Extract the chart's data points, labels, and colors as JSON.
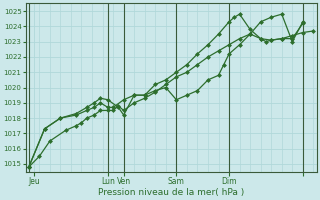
{
  "xlabel": "Pression niveau de la mer( hPa )",
  "bg_color": "#cce8ea",
  "grid_color": "#b0d8da",
  "line_color": "#2d6e2d",
  "ylim": [
    1014.5,
    1025.5
  ],
  "yticks": [
    1015,
    1016,
    1017,
    1018,
    1019,
    1020,
    1021,
    1022,
    1023,
    1024,
    1025
  ],
  "xlim": [
    -0.3,
    27.3
  ],
  "vline_positions": [
    0,
    7.5,
    9,
    14,
    19,
    26
  ],
  "xtick_positions": [
    0.5,
    7.5,
    9.0,
    14.0,
    19.0,
    26.0
  ],
  "xtick_labels": [
    "Jeu",
    "Lun",
    "Ven",
    "Sam",
    "Dim",
    ""
  ],
  "line1_x": [
    0,
    1.0,
    2.0,
    3.5,
    4.5,
    5.0,
    5.5,
    6.2,
    6.8,
    7.5,
    8.0,
    8.5,
    9.0,
    10.0,
    11.0,
    12.0,
    13.0,
    14.0,
    15.0,
    16.0,
    17.0,
    18.0,
    19.0,
    20.0,
    21.0,
    22.0,
    23.0,
    24.0,
    25.0,
    26.0,
    27.0
  ],
  "line1_y": [
    1014.8,
    1015.5,
    1016.5,
    1017.2,
    1017.5,
    1017.7,
    1018.0,
    1018.2,
    1018.5,
    1018.5,
    1018.5,
    1018.8,
    1018.5,
    1019.0,
    1019.3,
    1019.7,
    1020.2,
    1020.7,
    1021.0,
    1021.5,
    1022.0,
    1022.4,
    1022.8,
    1023.2,
    1023.5,
    1023.2,
    1023.1,
    1023.2,
    1023.4,
    1023.6,
    1023.7
  ],
  "line2_x": [
    0,
    1.5,
    3.0,
    4.5,
    5.5,
    6.2,
    6.8,
    7.5,
    8.0,
    9.0,
    10.0,
    11.0,
    12.0,
    13.0,
    14.0,
    15.0,
    16.0,
    17.0,
    18.0,
    18.5,
    19.0,
    20.0,
    21.0,
    22.0,
    23.0,
    24.0,
    25.0,
    26.0
  ],
  "line2_y": [
    1014.8,
    1017.3,
    1018.0,
    1018.2,
    1018.5,
    1018.7,
    1019.0,
    1018.7,
    1018.7,
    1019.2,
    1019.5,
    1019.5,
    1019.8,
    1020.0,
    1019.2,
    1019.5,
    1019.8,
    1020.5,
    1020.8,
    1021.5,
    1022.2,
    1022.8,
    1023.5,
    1024.3,
    1024.6,
    1024.8,
    1023.0,
    1024.3
  ],
  "line3_x": [
    0,
    1.5,
    3.0,
    4.5,
    5.5,
    6.2,
    6.8,
    7.5,
    8.5,
    9.0,
    10.0,
    11.0,
    12.0,
    13.0,
    14.0,
    15.0,
    16.0,
    17.0,
    18.0,
    19.0,
    19.5,
    20.0,
    21.0,
    22.0,
    22.5,
    23.0,
    24.0,
    25.0,
    26.0
  ],
  "line3_y": [
    1014.8,
    1017.3,
    1018.0,
    1018.3,
    1018.7,
    1019.0,
    1019.3,
    1019.2,
    1018.7,
    1018.2,
    1019.5,
    1019.5,
    1020.2,
    1020.5,
    1021.0,
    1021.5,
    1022.2,
    1022.8,
    1023.5,
    1024.3,
    1024.6,
    1024.8,
    1023.8,
    1023.2,
    1023.0,
    1023.1,
    1023.2,
    1023.2,
    1024.2
  ]
}
